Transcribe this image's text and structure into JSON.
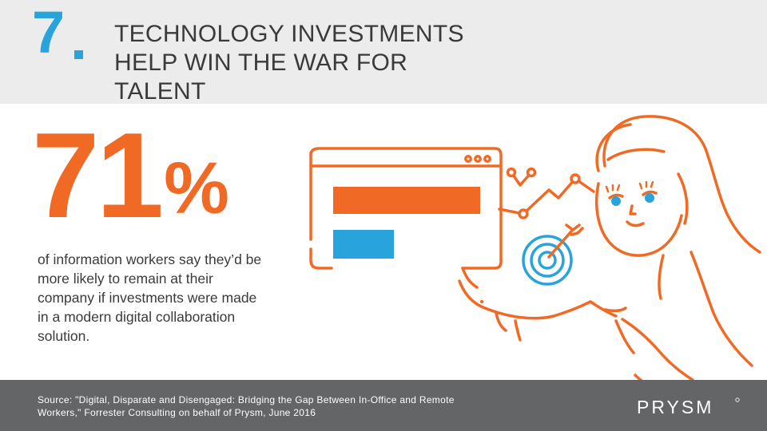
{
  "slide": {
    "number": "7",
    "headline_lines": [
      "TECHNOLOGY INVESTMENTS",
      "HELP WIN THE WAR FOR",
      "TALENT"
    ]
  },
  "stat": {
    "value": "71",
    "unit": "%",
    "description_lines": [
      "of information workers say they’d be",
      "more likely to remain at their",
      "company if investments were made",
      "in a modern digital collaboration",
      "solution."
    ]
  },
  "footer": {
    "source_lines": [
      "Source: \"Digital, Disparate and Disengaged: Bridging the Gap Between In-Office and Remote",
      "Workers,\" Forrester Consulting on behalf of Prysm, June 2016"
    ],
    "logo_text": "PRYSM"
  },
  "colors": {
    "accent_orange": "#f06a25",
    "accent_blue": "#29a3dc",
    "header_band": "#ececec",
    "footer_band": "#646567",
    "text": "#3a3a3a"
  },
  "icons": [
    "browser-window-icon",
    "line-graph-icon",
    "target-icon",
    "woman-illustration"
  ]
}
